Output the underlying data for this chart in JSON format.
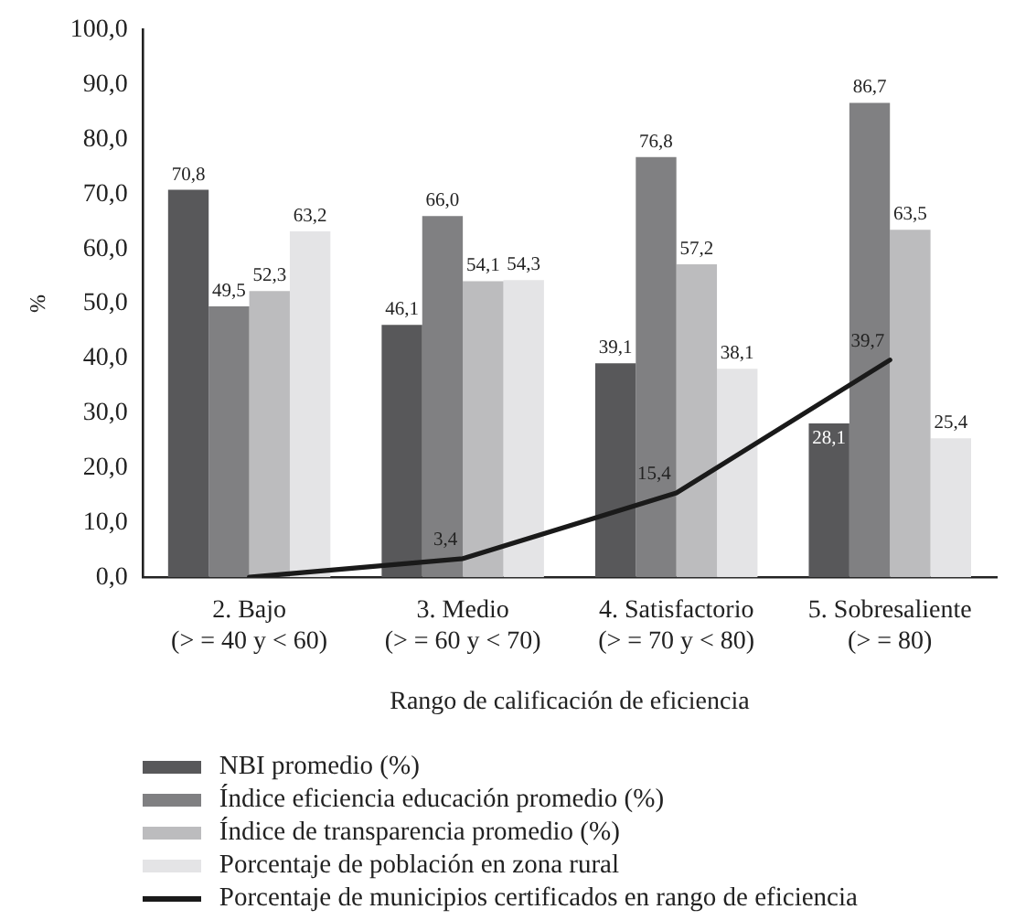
{
  "chart_data": {
    "type": "bar",
    "xlabel": "Rango de calificación de eficiencia",
    "ylabel": "%",
    "categories": [
      "2. Bajo\n(> = 40 y < 60)",
      "3. Medio\n(> = 60 y < 70)",
      "4. Satisfactorio\n(> = 70 y < 80)",
      "5. Sobresaliente\n(> = 80)"
    ],
    "series": [
      {
        "name": "NBI promedio (%)",
        "color": "#58585a",
        "values": [
          70.8,
          46.1,
          39.1,
          28.1
        ],
        "value_labels": [
          "70,8",
          "46,1",
          "39,1",
          "28,1"
        ]
      },
      {
        "name": "Índice eficiencia educación promedio (%)",
        "color": "#808082",
        "values": [
          49.5,
          66.0,
          76.8,
          86.7
        ],
        "value_labels": [
          "49,5",
          "66,0",
          "76,8",
          "86,7"
        ]
      },
      {
        "name": "Índice de transparencia promedio (%)",
        "color": "#bcbcbe",
        "values": [
          52.3,
          54.1,
          57.2,
          63.5
        ],
        "value_labels": [
          "52,3",
          "54,1",
          "57,2",
          "63,5"
        ]
      },
      {
        "name": "Porcentaje de población en zona rural",
        "color": "#e4e4e6",
        "values": [
          63.2,
          54.3,
          38.1,
          25.4
        ],
        "value_labels": [
          "63,2",
          "54,3",
          "38,1",
          "25,4"
        ]
      },
      {
        "name": "Porcentaje de municipios certificados en rango de eficiencia",
        "type": "line",
        "color": "#1a1a1a",
        "values": [
          0,
          3.4,
          15.4,
          39.7
        ],
        "value_labels": [
          null,
          "3,4",
          "15,4",
          "39,7"
        ]
      }
    ],
    "ylim": [
      0,
      100
    ],
    "yticks": [
      {
        "value": 0,
        "label": "0,0"
      },
      {
        "value": 10,
        "label": "10,0"
      },
      {
        "value": 20,
        "label": "20,0"
      },
      {
        "value": 30,
        "label": "30,0"
      },
      {
        "value": 40,
        "label": "40,0"
      },
      {
        "value": 50,
        "label": "50,0"
      },
      {
        "value": 60,
        "label": "60,0"
      },
      {
        "value": 70,
        "label": "70,0"
      },
      {
        "value": 80,
        "label": "80,0"
      },
      {
        "value": 90,
        "label": "90,0"
      },
      {
        "value": 100,
        "label": "100,0"
      }
    ],
    "grid": false,
    "legend": "bottom",
    "marker": "none",
    "line_style": "solid"
  }
}
